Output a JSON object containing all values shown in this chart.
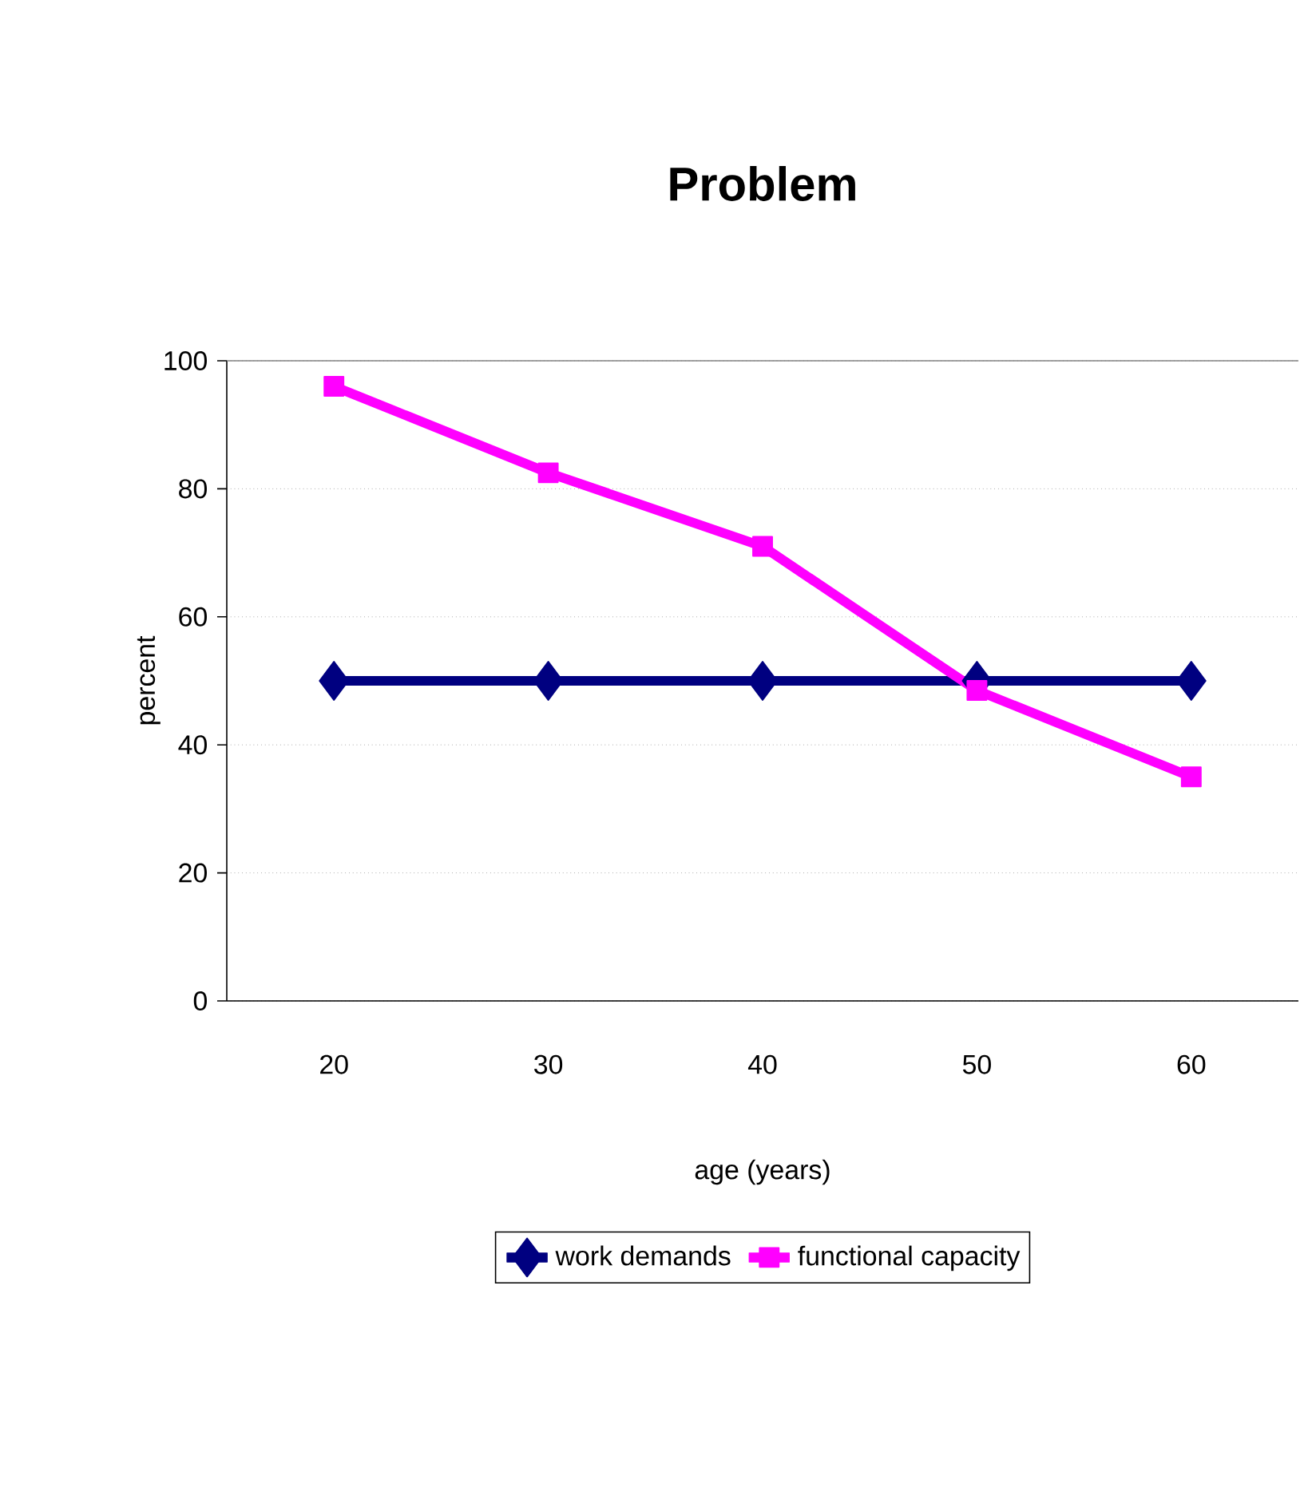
{
  "chart_data": {
    "type": "line",
    "title": "Problem",
    "xlabel": "age (years)",
    "ylabel": "percent",
    "categories": [
      "20",
      "30",
      "40",
      "50",
      "60"
    ],
    "series": [
      {
        "name": "work demands",
        "color": "#000080",
        "marker": "diamond",
        "values": [
          50,
          50,
          50,
          50,
          50
        ]
      },
      {
        "name": "functional capacity",
        "color": "#ff00ff",
        "marker": "square",
        "values": [
          96,
          82.5,
          71,
          48.5,
          35
        ]
      }
    ],
    "ylim": [
      0,
      100
    ],
    "yticks": [
      0,
      20,
      40,
      60,
      80,
      100
    ],
    "grid": "y",
    "legend": "bottom",
    "line_style": "solid"
  }
}
